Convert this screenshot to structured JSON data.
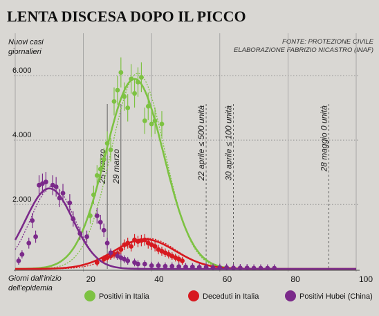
{
  "chart_data": {
    "type": "scatter",
    "title": "LENTA DISCESA DOPO IL PICCO",
    "source_line1": "FONTE: PROTEZIONE CIVILE",
    "source_line2": "ELABORAZIONE FABRIZIO NICASTRO (INAF)",
    "ylabel": "Nuovi casi giornalieri",
    "ylabel_lines": [
      "Nuovi casi",
      "giornalieri"
    ],
    "xlabel": "Giorni dall'inizio dell'epidemia",
    "xlabel_lines": [
      "Giorni dall'inizio",
      "dell'epidemia"
    ],
    "xlim": [
      0,
      100
    ],
    "ylim": [
      0,
      6500
    ],
    "x_ticks": [
      {
        "value": 20,
        "label": "20"
      },
      {
        "value": 40,
        "label": "40"
      },
      {
        "value": 60,
        "label": "60"
      },
      {
        "value": 80,
        "label": "80"
      },
      {
        "value": 100,
        "label": "100"
      }
    ],
    "y_ticks": [
      {
        "value": 2000,
        "label": "2.000"
      },
      {
        "value": 4000,
        "label": "4.000"
      },
      {
        "value": 6000,
        "label": "6.000"
      }
    ],
    "annotations": [
      {
        "x": 27,
        "label": "25 marzo",
        "dashed": false
      },
      {
        "x": 31,
        "label": "29 marzo",
        "dashed": false
      },
      {
        "x": 56,
        "label": "22 aprile ≤ 500 unità",
        "dashed": true
      },
      {
        "x": 64,
        "label": "30 aprile ≤ 100 unità",
        "dashed": true
      },
      {
        "x": 92,
        "label": "28 maggio 0 unità",
        "dashed": true
      }
    ],
    "legend_placement": "bottom",
    "grid": true,
    "series": [
      {
        "name": "Positivi in Italia",
        "color": "#7dc242",
        "points": [
          {
            "x": 22,
            "y": 1650
          },
          {
            "x": 23,
            "y": 2300
          },
          {
            "x": 24,
            "y": 2900
          },
          {
            "x": 25,
            "y": 3100
          },
          {
            "x": 26,
            "y": 3400
          },
          {
            "x": 27,
            "y": 3900
          },
          {
            "x": 28,
            "y": 3700
          },
          {
            "x": 29,
            "y": 5200
          },
          {
            "x": 30,
            "y": 5550
          },
          {
            "x": 31,
            "y": 6100
          },
          {
            "x": 32,
            "y": 5350
          },
          {
            "x": 33,
            "y": 5000
          },
          {
            "x": 34,
            "y": 5900
          },
          {
            "x": 35,
            "y": 5450
          },
          {
            "x": 36,
            "y": 5800
          },
          {
            "x": 37,
            "y": 5950
          },
          {
            "x": 38,
            "y": 4600
          },
          {
            "x": 39,
            "y": 5050
          },
          {
            "x": 40,
            "y": 4500
          },
          {
            "x": 41,
            "y": 4600
          },
          {
            "x": 43,
            "y": 4500
          }
        ],
        "fit": {
          "amplitude": 5900,
          "center": 35,
          "sigma": 8.5
        }
      },
      {
        "name": "Deceduti in Italia",
        "color": "#d7191f",
        "points": [
          {
            "x": 24,
            "y": 200
          },
          {
            "x": 26,
            "y": 300
          },
          {
            "x": 27,
            "y": 350
          },
          {
            "x": 28,
            "y": 400
          },
          {
            "x": 29,
            "y": 450
          },
          {
            "x": 30,
            "y": 480
          },
          {
            "x": 31,
            "y": 600
          },
          {
            "x": 32,
            "y": 750
          },
          {
            "x": 33,
            "y": 800
          },
          {
            "x": 34,
            "y": 700
          },
          {
            "x": 35,
            "y": 900
          },
          {
            "x": 36,
            "y": 850
          },
          {
            "x": 37,
            "y": 880
          },
          {
            "x": 38,
            "y": 900
          },
          {
            "x": 39,
            "y": 800
          },
          {
            "x": 40,
            "y": 750
          },
          {
            "x": 41,
            "y": 700
          },
          {
            "x": 42,
            "y": 600
          },
          {
            "x": 43,
            "y": 550
          },
          {
            "x": 44,
            "y": 500
          },
          {
            "x": 45,
            "y": 450
          },
          {
            "x": 46,
            "y": 400
          },
          {
            "x": 47,
            "y": 350
          },
          {
            "x": 48,
            "y": 300
          },
          {
            "x": 49,
            "y": 250
          }
        ],
        "fit": {
          "amplitude": 920,
          "center": 38,
          "sigma": 9
        }
      },
      {
        "name": "Positivi Hubei (China)",
        "color": "#7b2a8a",
        "points": [
          {
            "x": 1,
            "y": 250
          },
          {
            "x": 2,
            "y": 450
          },
          {
            "x": 4,
            "y": 800
          },
          {
            "x": 5,
            "y": 1500
          },
          {
            "x": 6,
            "y": 1000
          },
          {
            "x": 7,
            "y": 2600
          },
          {
            "x": 8,
            "y": 2650
          },
          {
            "x": 9,
            "y": 2700
          },
          {
            "x": 11,
            "y": 2600
          },
          {
            "x": 12,
            "y": 2550
          },
          {
            "x": 13,
            "y": 2200
          },
          {
            "x": 14,
            "y": 2350
          },
          {
            "x": 16,
            "y": 2050
          },
          {
            "x": 17,
            "y": 1550
          },
          {
            "x": 19,
            "y": 1100
          },
          {
            "x": 21,
            "y": 1000
          },
          {
            "x": 24,
            "y": 1650
          },
          {
            "x": 25,
            "y": 1450
          },
          {
            "x": 26,
            "y": 1200
          },
          {
            "x": 27,
            "y": 800
          },
          {
            "x": 28,
            "y": 500
          },
          {
            "x": 30,
            "y": 400
          },
          {
            "x": 31,
            "y": 350
          },
          {
            "x": 32,
            "y": 300
          },
          {
            "x": 33,
            "y": 250
          },
          {
            "x": 35,
            "y": 200
          },
          {
            "x": 36,
            "y": 150
          },
          {
            "x": 38,
            "y": 150
          },
          {
            "x": 40,
            "y": 100
          },
          {
            "x": 42,
            "y": 100
          },
          {
            "x": 44,
            "y": 80
          },
          {
            "x": 46,
            "y": 80
          },
          {
            "x": 48,
            "y": 70
          },
          {
            "x": 50,
            "y": 60
          },
          {
            "x": 52,
            "y": 60
          },
          {
            "x": 54,
            "y": 50
          },
          {
            "x": 56,
            "y": 50
          },
          {
            "x": 58,
            "y": 40
          },
          {
            "x": 60,
            "y": 40
          },
          {
            "x": 62,
            "y": 40
          },
          {
            "x": 64,
            "y": 30
          },
          {
            "x": 66,
            "y": 30
          },
          {
            "x": 68,
            "y": 30
          },
          {
            "x": 70,
            "y": 20
          },
          {
            "x": 72,
            "y": 20
          },
          {
            "x": 74,
            "y": 20
          },
          {
            "x": 76,
            "y": 20
          }
        ],
        "fit": {
          "amplitude": 2500,
          "center": 10,
          "sigma": 7
        }
      }
    ]
  }
}
